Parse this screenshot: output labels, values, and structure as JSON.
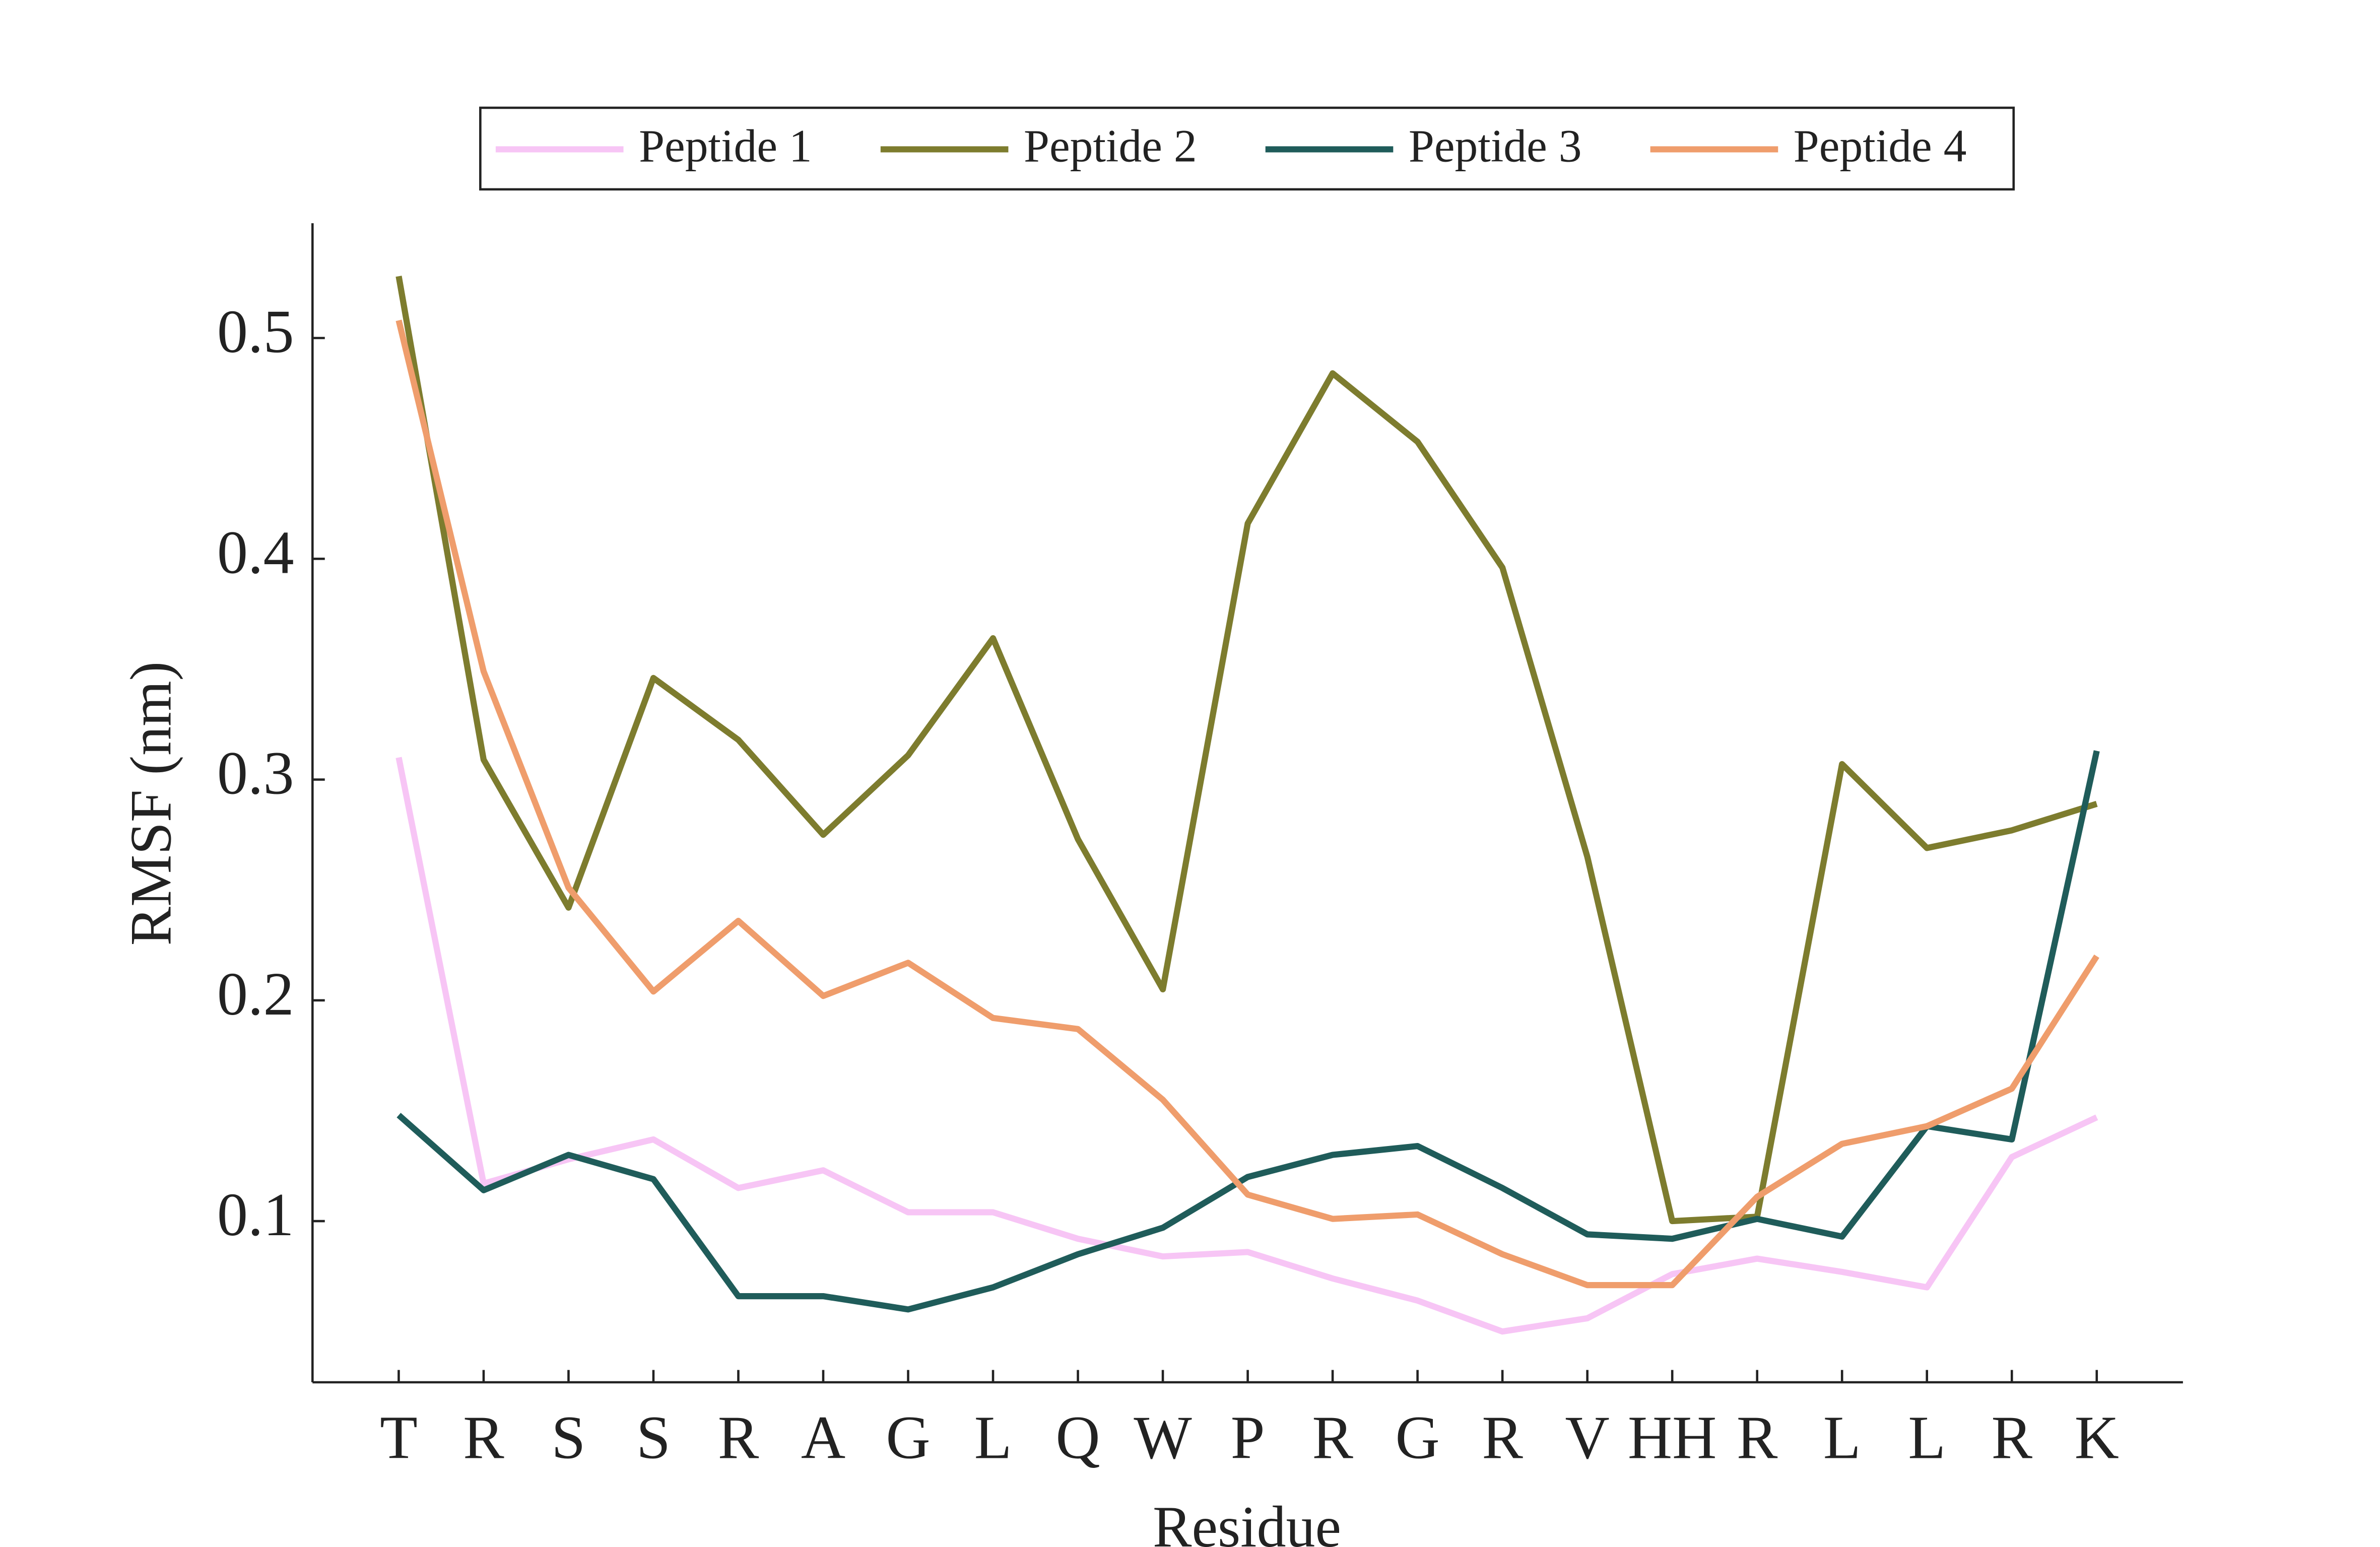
{
  "chart_data": {
    "type": "line",
    "xlabel": "Residue",
    "ylabel": "RMSF (nm)",
    "categories": [
      "T",
      "R",
      "S",
      "S",
      "R",
      "A",
      "G",
      "L",
      "Q",
      "W",
      "P",
      "R",
      "G",
      "R",
      "V",
      "HH",
      "R",
      "L",
      "L",
      "R",
      "K"
    ],
    "ylim": [
      0.027,
      0.552
    ],
    "yticks": [
      0.1,
      0.2,
      0.3,
      0.4,
      0.5
    ],
    "grid": false,
    "legend": "top",
    "series": [
      {
        "name": "Peptide 1",
        "color": "#f7c5f5",
        "values": [
          0.31,
          0.117,
          0.128,
          0.137,
          0.115,
          0.123,
          0.104,
          0.104,
          0.092,
          0.084,
          0.086,
          0.074,
          0.064,
          0.05,
          0.056,
          0.076,
          0.083,
          0.077,
          0.07,
          0.129,
          0.147
        ]
      },
      {
        "name": "Peptide 2",
        "color": "#7d7c2e",
        "values": [
          0.528,
          0.309,
          0.242,
          0.346,
          0.318,
          0.275,
          0.311,
          0.364,
          0.273,
          0.205,
          0.416,
          0.484,
          0.453,
          0.396,
          0.265,
          0.1,
          0.102,
          0.307,
          0.269,
          0.277,
          0.289
        ]
      },
      {
        "name": "Peptide 3",
        "color": "#1f5c5a",
        "values": [
          0.148,
          0.114,
          0.13,
          0.119,
          0.066,
          0.066,
          0.06,
          0.07,
          0.085,
          0.097,
          0.12,
          0.13,
          0.134,
          0.115,
          0.094,
          0.092,
          0.101,
          0.093,
          0.143,
          0.137,
          0.313
        ]
      },
      {
        "name": "Peptide 4",
        "color": "#ef9d6c",
        "values": [
          0.508,
          0.349,
          0.251,
          0.204,
          0.236,
          0.202,
          0.217,
          0.192,
          0.187,
          0.155,
          0.112,
          0.101,
          0.103,
          0.085,
          0.071,
          0.071,
          0.111,
          0.135,
          0.143,
          0.16,
          0.22
        ]
      }
    ]
  }
}
